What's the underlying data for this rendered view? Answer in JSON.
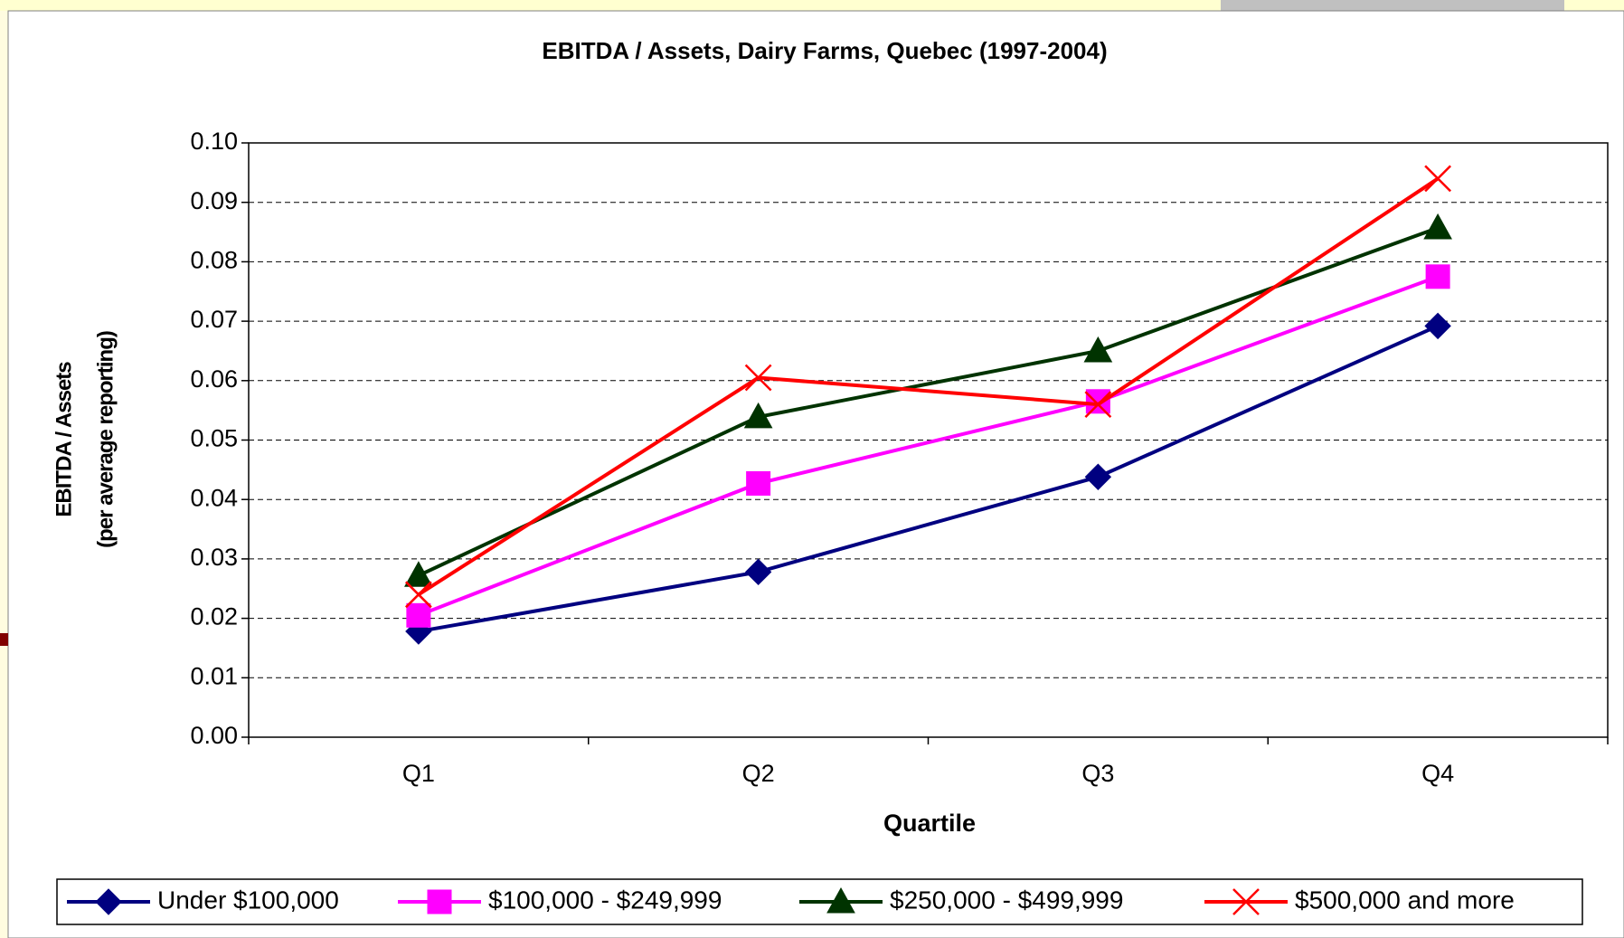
{
  "chart_data": {
    "type": "line",
    "title": "EBITDA / Assets, Dairy Farms, Quebec (1997-2004)",
    "x_label": "Quartile",
    "y_label": [
      "EBITDA / Assets",
      "(per average reporting)"
    ],
    "categories": [
      "Q1",
      "Q2",
      "Q3",
      "Q4"
    ],
    "series": [
      {
        "name": "Under $100,000",
        "color": "#000080",
        "marker": "diamond",
        "values": [
          0.0178,
          0.0278,
          0.0438,
          0.0692
        ]
      },
      {
        "name": "$100,000 - $249,999",
        "color": "#ff00ff",
        "marker": "square",
        "values": [
          0.0205,
          0.0427,
          0.0565,
          0.0775
        ]
      },
      {
        "name": "$250,000 - $499,999",
        "color": "#003300",
        "marker": "triangle",
        "values": [
          0.0272,
          0.0539,
          0.065,
          0.0857
        ]
      },
      {
        "name": "$500,000 and more",
        "color": "#ff0000",
        "marker": "x",
        "values": [
          0.024,
          0.0605,
          0.056,
          0.094
        ]
      }
    ],
    "ylim": [
      0,
      0.1
    ],
    "yticks": [
      {
        "value": 0,
        "label": "0.00"
      },
      {
        "value": 0.01,
        "label": "0.01"
      },
      {
        "value": 0.02,
        "label": "0.02"
      },
      {
        "value": 0.03,
        "label": "0.03"
      },
      {
        "value": 0.04,
        "label": "0.04"
      },
      {
        "value": 0.05,
        "label": "0.05"
      },
      {
        "value": 0.06,
        "label": "0.06"
      },
      {
        "value": 0.07,
        "label": "0.07"
      },
      {
        "value": 0.08,
        "label": "0.08"
      },
      {
        "value": 0.09,
        "label": "0.09"
      },
      {
        "value": 0.1,
        "label": "0.10"
      }
    ],
    "grid": true,
    "legend": "bottom"
  }
}
